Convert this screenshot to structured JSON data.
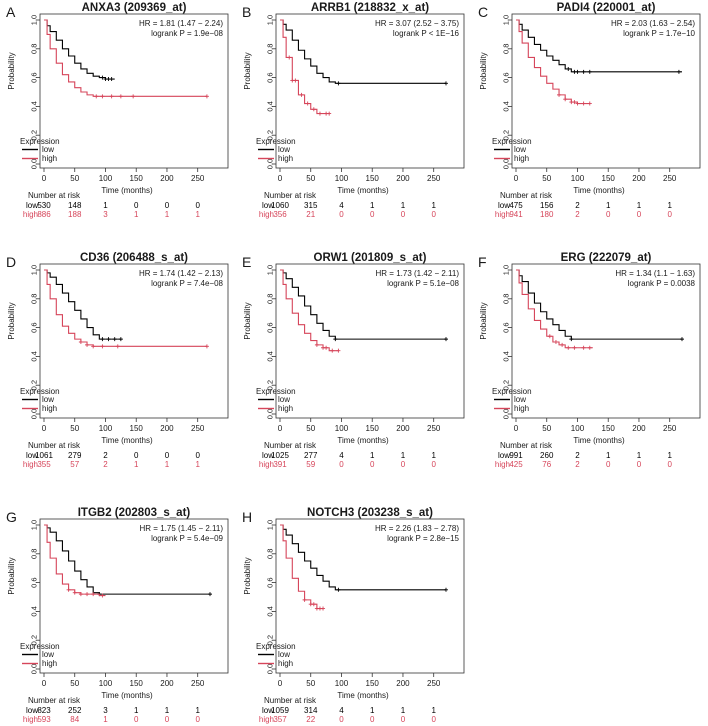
{
  "figure": {
    "x_axis_label": "Time (months)",
    "y_axis_label": "Probability",
    "legend_title": "Expression",
    "risk_table_title": "Number at risk"
  },
  "colors": {
    "low": "#000000",
    "high": "#d6455a",
    "text": "#1a1a1a"
  },
  "chart_data": [
    {
      "panel": "A",
      "type": "line",
      "title": "ANXA3 (209369_at)",
      "hr_text": "HR = 1.81 (1.47 − 2.24)",
      "logrank_text": "logrank P = 1.9e−08",
      "xlabel": "Time (months)",
      "ylabel": "Probability",
      "xlim": [
        0,
        270
      ],
      "ylim": [
        0,
        1
      ],
      "xticks": [
        0,
        50,
        100,
        150,
        200,
        250
      ],
      "yticks": [
        "0.0",
        "0.2",
        "0.4",
        "0.6",
        "0.8",
        "1.0"
      ],
      "series": [
        {
          "name": "low",
          "color": "#000000",
          "x": [
            0,
            5,
            10,
            20,
            30,
            40,
            50,
            60,
            70,
            80,
            90,
            100,
            115
          ],
          "y": [
            1,
            0.96,
            0.92,
            0.86,
            0.8,
            0.75,
            0.7,
            0.66,
            0.63,
            0.61,
            0.6,
            0.59,
            0.59
          ],
          "censor": [
            95,
            100,
            105,
            110
          ]
        },
        {
          "name": "high",
          "color": "#d6455a",
          "x": [
            0,
            5,
            10,
            20,
            30,
            40,
            50,
            60,
            70,
            80,
            90,
            265
          ],
          "y": [
            1,
            0.9,
            0.8,
            0.7,
            0.62,
            0.57,
            0.53,
            0.5,
            0.48,
            0.47,
            0.47,
            0.47
          ],
          "censor": [
            85,
            95,
            110,
            125,
            145,
            265
          ]
        }
      ],
      "risk_table": {
        "times": [
          "0",
          "50",
          "100",
          "150",
          "200",
          "250"
        ],
        "low": [
          "530",
          "148",
          "1",
          "0",
          "0",
          "0"
        ],
        "high": [
          "886",
          "188",
          "3",
          "1",
          "1",
          "1"
        ]
      }
    },
    {
      "panel": "B",
      "type": "line",
      "title": "ARRB1 (218832_x_at)",
      "hr_text": "HR = 3.07 (2.52 − 3.75)",
      "logrank_text": "logrank P < 1E−16",
      "xlabel": "Time (months)",
      "ylabel": "Probability",
      "xlim": [
        0,
        270
      ],
      "ylim": [
        0,
        1
      ],
      "xticks": [
        0,
        50,
        100,
        150,
        200,
        250
      ],
      "yticks": [
        "0.0",
        "0.2",
        "0.4",
        "0.6",
        "0.8",
        "1.0"
      ],
      "series": [
        {
          "name": "low",
          "color": "#000000",
          "x": [
            0,
            5,
            10,
            20,
            30,
            40,
            50,
            60,
            70,
            80,
            90,
            100,
            270
          ],
          "y": [
            1,
            0.97,
            0.93,
            0.86,
            0.79,
            0.73,
            0.68,
            0.63,
            0.6,
            0.57,
            0.56,
            0.56,
            0.56
          ],
          "censor": [
            95,
            270
          ]
        },
        {
          "name": "high",
          "color": "#d6455a",
          "x": [
            0,
            5,
            10,
            20,
            30,
            40,
            50,
            60,
            70,
            80
          ],
          "y": [
            1,
            0.88,
            0.74,
            0.58,
            0.48,
            0.42,
            0.38,
            0.35,
            0.35,
            0.35
          ],
          "censor": [
            15,
            20,
            25,
            35,
            45,
            55,
            65,
            75,
            80
          ]
        }
      ],
      "risk_table": {
        "times": [
          "0",
          "50",
          "100",
          "150",
          "200",
          "250"
        ],
        "low": [
          "1060",
          "315",
          "4",
          "1",
          "1",
          "1"
        ],
        "high": [
          "356",
          "21",
          "0",
          "0",
          "0",
          "0"
        ]
      }
    },
    {
      "panel": "C",
      "type": "line",
      "title": "PADI4 (220001_at)",
      "hr_text": "HR = 2.03 (1.63 − 2.54)",
      "logrank_text": "logrank P = 1.7e−10",
      "xlabel": "Time (months)",
      "ylabel": "Probability",
      "xlim": [
        0,
        270
      ],
      "ylim": [
        0,
        1
      ],
      "xticks": [
        0,
        50,
        100,
        150,
        200,
        250
      ],
      "yticks": [
        "0.0",
        "0.2",
        "0.4",
        "0.6",
        "0.8",
        "1.0"
      ],
      "series": [
        {
          "name": "low",
          "color": "#000000",
          "x": [
            0,
            5,
            10,
            20,
            30,
            40,
            50,
            60,
            70,
            80,
            90,
            100,
            120,
            270
          ],
          "y": [
            1,
            0.97,
            0.93,
            0.88,
            0.83,
            0.79,
            0.75,
            0.72,
            0.69,
            0.66,
            0.64,
            0.64,
            0.64,
            0.64
          ],
          "censor": [
            85,
            95,
            100,
            110,
            120,
            265
          ]
        },
        {
          "name": "high",
          "color": "#d6455a",
          "x": [
            0,
            5,
            10,
            20,
            30,
            40,
            50,
            60,
            70,
            80,
            90,
            100,
            120
          ],
          "y": [
            1,
            0.92,
            0.84,
            0.74,
            0.67,
            0.61,
            0.56,
            0.52,
            0.48,
            0.45,
            0.43,
            0.42,
            0.42
          ],
          "censor": [
            70,
            80,
            90,
            95,
            100,
            110,
            120
          ]
        }
      ],
      "risk_table": {
        "times": [
          "0",
          "50",
          "100",
          "150",
          "200",
          "250"
        ],
        "low": [
          "475",
          "156",
          "2",
          "1",
          "1",
          "1"
        ],
        "high": [
          "941",
          "180",
          "2",
          "0",
          "0",
          "0"
        ]
      }
    },
    {
      "panel": "D",
      "type": "line",
      "title": "CD36 (206488_s_at)",
      "hr_text": "HR = 1.74 (1.42 − 2.13)",
      "logrank_text": "logrank P = 7.4e−08",
      "xlabel": "Time (months)",
      "ylabel": "Probability",
      "xlim": [
        0,
        270
      ],
      "ylim": [
        0,
        1
      ],
      "xticks": [
        0,
        50,
        100,
        150,
        200,
        250
      ],
      "yticks": [
        "0.0",
        "0.2",
        "0.4",
        "0.6",
        "0.8",
        "1.0"
      ],
      "series": [
        {
          "name": "low",
          "color": "#000000",
          "x": [
            0,
            5,
            10,
            20,
            30,
            40,
            50,
            60,
            70,
            80,
            90,
            100,
            125
          ],
          "y": [
            1,
            0.98,
            0.95,
            0.9,
            0.84,
            0.78,
            0.72,
            0.66,
            0.6,
            0.55,
            0.52,
            0.52,
            0.52
          ],
          "censor": [
            95,
            105,
            115,
            125
          ]
        },
        {
          "name": "high",
          "color": "#d6455a",
          "x": [
            0,
            5,
            10,
            20,
            30,
            40,
            50,
            60,
            70,
            80,
            265
          ],
          "y": [
            1,
            0.9,
            0.8,
            0.69,
            0.61,
            0.56,
            0.52,
            0.5,
            0.48,
            0.47,
            0.47
          ],
          "censor": [
            60,
            70,
            80,
            95,
            120,
            265
          ]
        }
      ],
      "risk_table": {
        "times": [
          "0",
          "50",
          "100",
          "150",
          "200",
          "250"
        ],
        "low": [
          "1061",
          "279",
          "2",
          "0",
          "0",
          "0"
        ],
        "high": [
          "355",
          "57",
          "2",
          "1",
          "1",
          "1"
        ]
      }
    },
    {
      "panel": "E",
      "type": "line",
      "title": "ORW1 (201809_s_at)",
      "hr_text": "HR = 1.73 (1.42 − 2.11)",
      "logrank_text": "logrank P = 5.1e−08",
      "xlabel": "Time (months)",
      "ylabel": "Probability",
      "xlim": [
        0,
        270
      ],
      "ylim": [
        0,
        1
      ],
      "xticks": [
        0,
        50,
        100,
        150,
        200,
        250
      ],
      "yticks": [
        "0.0",
        "0.2",
        "0.4",
        "0.6",
        "0.8",
        "1.0"
      ],
      "series": [
        {
          "name": "low",
          "color": "#000000",
          "x": [
            0,
            5,
            10,
            20,
            30,
            40,
            50,
            60,
            70,
            80,
            90,
            100,
            270
          ],
          "y": [
            1,
            0.98,
            0.94,
            0.88,
            0.82,
            0.75,
            0.69,
            0.63,
            0.58,
            0.54,
            0.52,
            0.52,
            0.52
          ],
          "censor": [
            90,
            270
          ]
        },
        {
          "name": "high",
          "color": "#d6455a",
          "x": [
            0,
            5,
            10,
            20,
            30,
            40,
            50,
            60,
            70,
            80,
            95
          ],
          "y": [
            1,
            0.9,
            0.8,
            0.7,
            0.62,
            0.56,
            0.51,
            0.48,
            0.46,
            0.44,
            0.44
          ],
          "censor": [
            60,
            70,
            75,
            85,
            95
          ]
        }
      ],
      "risk_table": {
        "times": [
          "0",
          "50",
          "100",
          "150",
          "200",
          "250"
        ],
        "low": [
          "1025",
          "277",
          "4",
          "1",
          "1",
          "1"
        ],
        "high": [
          "391",
          "59",
          "0",
          "0",
          "0",
          "0"
        ]
      }
    },
    {
      "panel": "F",
      "type": "line",
      "title": "ERG (222079_at)",
      "hr_text": "HR = 1.34 (1.1 − 1.63)",
      "logrank_text": "logrank P = 0.0038",
      "xlabel": "Time (months)",
      "ylabel": "Probability",
      "xlim": [
        0,
        270
      ],
      "ylim": [
        0,
        1
      ],
      "xticks": [
        0,
        50,
        100,
        150,
        200,
        250
      ],
      "yticks": [
        "0.0",
        "0.2",
        "0.4",
        "0.6",
        "0.8",
        "1.0"
      ],
      "series": [
        {
          "name": "low",
          "color": "#000000",
          "x": [
            0,
            5,
            10,
            20,
            30,
            40,
            50,
            60,
            70,
            80,
            90,
            100,
            270
          ],
          "y": [
            1,
            0.96,
            0.92,
            0.84,
            0.77,
            0.71,
            0.66,
            0.62,
            0.58,
            0.54,
            0.52,
            0.52,
            0.52
          ],
          "censor": [
            90,
            270
          ]
        },
        {
          "name": "high",
          "color": "#d6455a",
          "x": [
            0,
            5,
            10,
            20,
            30,
            40,
            50,
            60,
            70,
            80,
            90,
            100,
            125
          ],
          "y": [
            1,
            0.91,
            0.83,
            0.73,
            0.65,
            0.59,
            0.54,
            0.5,
            0.48,
            0.46,
            0.46,
            0.46,
            0.46
          ],
          "censor": [
            55,
            65,
            75,
            85,
            95,
            110,
            120
          ]
        }
      ],
      "risk_table": {
        "times": [
          "0",
          "50",
          "100",
          "150",
          "200",
          "250"
        ],
        "low": [
          "991",
          "260",
          "2",
          "1",
          "1",
          "1"
        ],
        "high": [
          "425",
          "76",
          "2",
          "0",
          "0",
          "0"
        ]
      }
    },
    {
      "panel": "G",
      "type": "line",
      "title": "ITGB2 (202803_s_at)",
      "hr_text": "HR = 1.75 (1.45 − 2.11)",
      "logrank_text": "logrank P = 5.4e−09",
      "xlabel": "Time (months)",
      "ylabel": "Probability",
      "xlim": [
        0,
        270
      ],
      "ylim": [
        0,
        1
      ],
      "xticks": [
        0,
        50,
        100,
        150,
        200,
        250
      ],
      "yticks": [
        "0.0",
        "0.2",
        "0.4",
        "0.6",
        "0.8",
        "1.0"
      ],
      "series": [
        {
          "name": "low",
          "color": "#000000",
          "x": [
            0,
            5,
            10,
            20,
            30,
            40,
            50,
            60,
            70,
            80,
            90,
            100,
            270
          ],
          "y": [
            1,
            0.98,
            0.95,
            0.89,
            0.82,
            0.75,
            0.68,
            0.62,
            0.57,
            0.53,
            0.52,
            0.52,
            0.52
          ],
          "censor": [
            90,
            270
          ]
        },
        {
          "name": "high",
          "color": "#d6455a",
          "x": [
            0,
            5,
            10,
            20,
            30,
            40,
            50,
            60,
            70,
            80,
            90,
            100
          ],
          "y": [
            1,
            0.88,
            0.77,
            0.66,
            0.59,
            0.55,
            0.53,
            0.52,
            0.52,
            0.52,
            0.51,
            0.51
          ],
          "censor": [
            40,
            50,
            60,
            70,
            80,
            95
          ]
        }
      ],
      "risk_table": {
        "times": [
          "0",
          "50",
          "100",
          "150",
          "200",
          "250"
        ],
        "low": [
          "823",
          "252",
          "3",
          "1",
          "1",
          "1"
        ],
        "high": [
          "593",
          "84",
          "1",
          "0",
          "0",
          "0"
        ]
      }
    },
    {
      "panel": "H",
      "type": "line",
      "title": "NOTCH3 (203238_s_at)",
      "hr_text": "HR = 2.26 (1.83 − 2.78)",
      "logrank_text": "logrank P = 2.8e−15",
      "xlabel": "Time (months)",
      "ylabel": "Probability",
      "xlim": [
        0,
        270
      ],
      "ylim": [
        0,
        1
      ],
      "xticks": [
        0,
        50,
        100,
        150,
        200,
        250
      ],
      "yticks": [
        "0.0",
        "0.2",
        "0.4",
        "0.6",
        "0.8",
        "1.0"
      ],
      "series": [
        {
          "name": "low",
          "color": "#000000",
          "x": [
            0,
            5,
            10,
            20,
            30,
            40,
            50,
            60,
            70,
            80,
            90,
            100,
            270
          ],
          "y": [
            1,
            0.97,
            0.93,
            0.87,
            0.81,
            0.75,
            0.7,
            0.65,
            0.61,
            0.57,
            0.55,
            0.55,
            0.55
          ],
          "censor": [
            95,
            270
          ]
        },
        {
          "name": "high",
          "color": "#d6455a",
          "x": [
            0,
            5,
            10,
            20,
            30,
            40,
            50,
            60,
            70
          ],
          "y": [
            1,
            0.89,
            0.77,
            0.63,
            0.54,
            0.48,
            0.45,
            0.42,
            0.42
          ],
          "censor": [
            40,
            50,
            55,
            60,
            65,
            70
          ]
        }
      ],
      "risk_table": {
        "times": [
          "0",
          "50",
          "100",
          "150",
          "200",
          "250"
        ],
        "low": [
          "1059",
          "314",
          "4",
          "1",
          "1",
          "1"
        ],
        "high": [
          "357",
          "22",
          "0",
          "0",
          "0",
          "0"
        ]
      }
    }
  ]
}
